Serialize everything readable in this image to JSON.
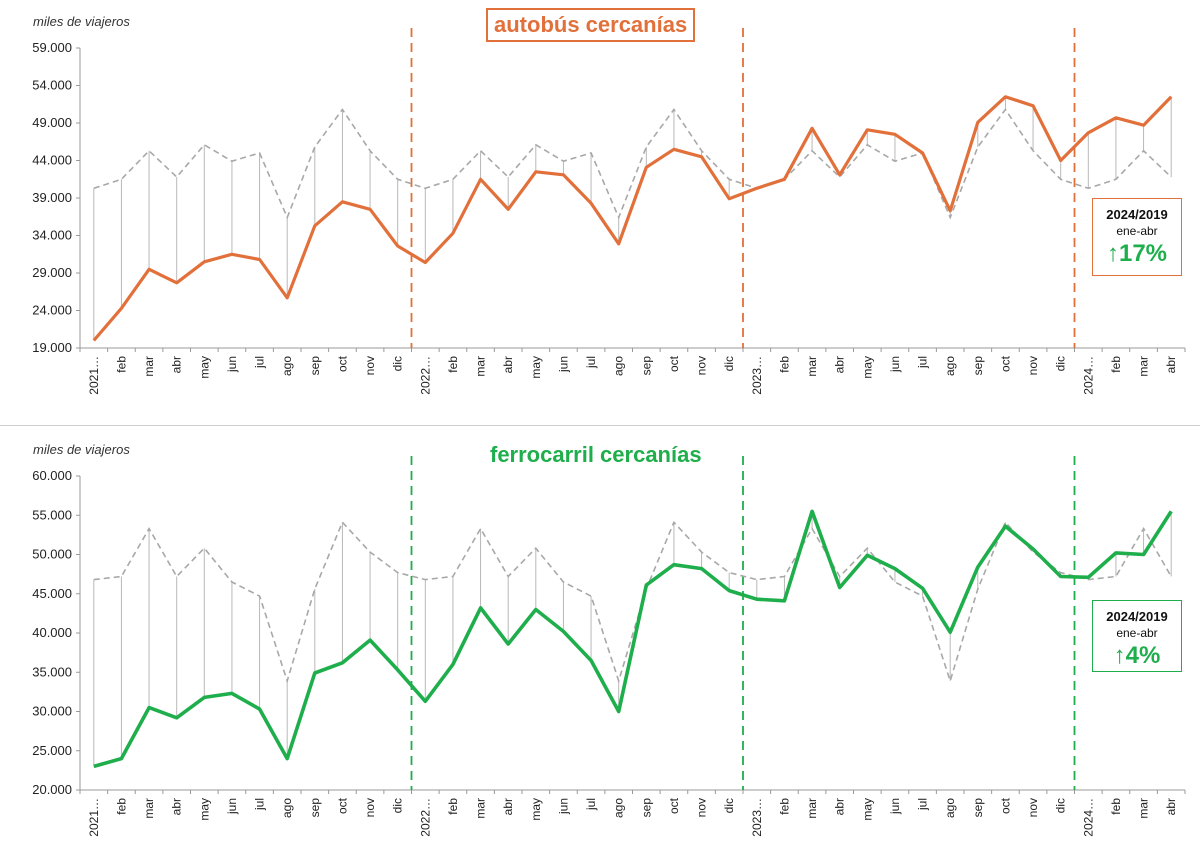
{
  "chart_data": [
    {
      "type": "line",
      "title": "autobús cercanías",
      "ylabel": "miles de viajeros",
      "ylim": [
        19000,
        59000
      ],
      "yticks": [
        19000,
        24000,
        29000,
        34000,
        39000,
        44000,
        49000,
        54000,
        59000
      ],
      "ytick_labels": [
        "19.000",
        "24.000",
        "29.000",
        "34.000",
        "39.000",
        "44.000",
        "49.000",
        "54.000",
        "59.000"
      ],
      "categories": [
        "2021…",
        "feb",
        "mar",
        "abr",
        "may",
        "jun",
        "jul",
        "ago",
        "sep",
        "oct",
        "nov",
        "dic",
        "2022…",
        "feb",
        "mar",
        "abr",
        "may",
        "jun",
        "jul",
        "ago",
        "sep",
        "oct",
        "nov",
        "dic",
        "2023…",
        "feb",
        "mar",
        "abr",
        "may",
        "jun",
        "jul",
        "ago",
        "sep",
        "oct",
        "nov",
        "dic",
        "2024…",
        "feb",
        "mar",
        "abr"
      ],
      "year_markers": [
        "2022…",
        "2023…",
        "2024…"
      ],
      "series": [
        {
          "role": "reference",
          "color": "#a8a8a8",
          "values": [
            40300,
            41500,
            45300,
            41800,
            46100,
            43900,
            45000,
            36400,
            45800,
            50800,
            45300,
            41500,
            40300,
            41500,
            45300,
            41800,
            46100,
            43900,
            45000,
            36400,
            45800,
            50800,
            45300,
            41500,
            40300,
            41500,
            45300,
            41800,
            46100,
            43900,
            45000,
            36400,
            45800,
            50800,
            45300,
            41500,
            40300,
            41500,
            45300,
            41800
          ]
        },
        {
          "role": "actual",
          "color": "#e2703a",
          "values": [
            20000,
            24300,
            29500,
            27700,
            30500,
            31500,
            30800,
            25700,
            35300,
            38500,
            37500,
            32600,
            30400,
            34300,
            41500,
            37500,
            42500,
            42100,
            38300,
            32900,
            43100,
            45500,
            44500,
            38900,
            40300,
            41500,
            48300,
            42100,
            48100,
            47500,
            45000,
            37300,
            49100,
            52500,
            51300,
            44000,
            47700,
            49700,
            48700,
            52500
          ]
        }
      ],
      "annotation": {
        "line1": "2024/2019",
        "line2": "ene-abr",
        "change": "↑17%"
      }
    },
    {
      "type": "line",
      "title": "ferrocarril cercanías",
      "ylabel": "miles de viajeros",
      "ylim": [
        20000,
        60000
      ],
      "yticks": [
        20000,
        25000,
        30000,
        35000,
        40000,
        45000,
        50000,
        55000,
        60000
      ],
      "ytick_labels": [
        "20.000",
        "25.000",
        "30.000",
        "35.000",
        "40.000",
        "45.000",
        "50.000",
        "55.000",
        "60.000"
      ],
      "categories": [
        "2021…",
        "feb",
        "mar",
        "abr",
        "may",
        "jun",
        "jul",
        "ago",
        "sep",
        "oct",
        "nov",
        "dic",
        "2022…",
        "feb",
        "mar",
        "abr",
        "may",
        "jun",
        "jul",
        "ago",
        "sep",
        "oct",
        "nov",
        "dic",
        "2023…",
        "feb",
        "mar",
        "abr",
        "may",
        "jun",
        "jul",
        "ago",
        "sep",
        "oct",
        "nov",
        "dic",
        "2024…",
        "feb",
        "mar",
        "abr"
      ],
      "year_markers": [
        "2022…",
        "2023…",
        "2024…"
      ],
      "series": [
        {
          "role": "reference",
          "color": "#a8a8a8",
          "values": [
            46800,
            47200,
            53300,
            47200,
            50800,
            46500,
            44700,
            33900,
            45600,
            54100,
            50300,
            47700,
            46800,
            47200,
            53300,
            47200,
            50800,
            46500,
            44700,
            33900,
            45600,
            54100,
            50300,
            47700,
            46800,
            47200,
            53300,
            47200,
            50800,
            46500,
            44700,
            33900,
            45600,
            54100,
            50300,
            47700,
            46800,
            47200,
            53300,
            47200
          ]
        },
        {
          "role": "actual",
          "color": "#1fae4c",
          "values": [
            23000,
            24000,
            30500,
            29200,
            31800,
            32300,
            30300,
            24000,
            34900,
            36200,
            39100,
            35300,
            31300,
            36000,
            43200,
            38600,
            43000,
            40200,
            36500,
            30000,
            46100,
            48700,
            48200,
            45400,
            44300,
            44100,
            55500,
            45800,
            49900,
            48200,
            45700,
            40100,
            48400,
            53600,
            50700,
            47200,
            47100,
            50200,
            50000,
            55500
          ]
        }
      ],
      "annotation": {
        "line1": "2024/2019",
        "line2": "ene-abr",
        "change": "↑4%"
      }
    }
  ]
}
